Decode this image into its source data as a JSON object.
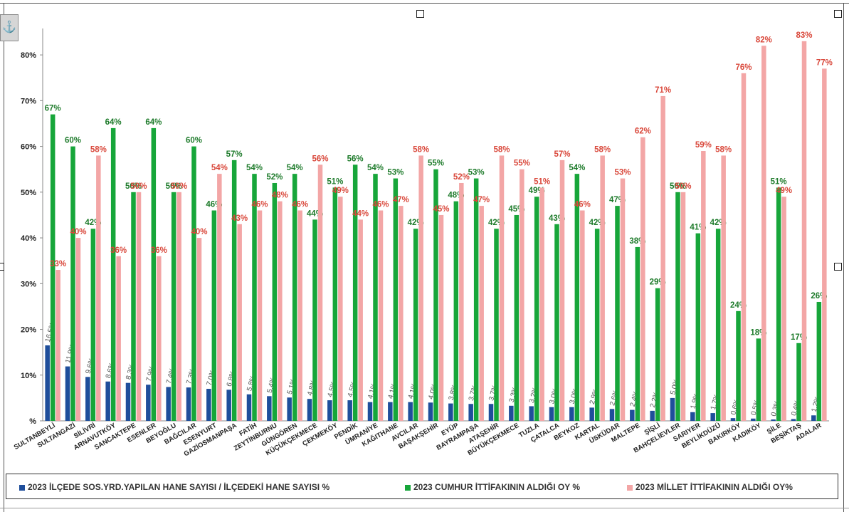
{
  "colors": {
    "series1": "#1f4e9b",
    "series2": "#17a63a",
    "series3": "#f3a6a6",
    "series2_label": "#1e7b2b",
    "series3_label": "#d9473a",
    "series1_label": "#555555",
    "axis_text": "#222222"
  },
  "icons": {
    "anchor": "anchor-icon"
  },
  "chart_data": {
    "type": "bar",
    "title": "",
    "xlabel": "",
    "ylabel": "",
    "ylim": [
      0,
      85
    ],
    "yticks": [
      0,
      10,
      20,
      30,
      40,
      50,
      60,
      70,
      80
    ],
    "ytick_labels": [
      "%",
      "10%",
      "20%",
      "30%",
      "40%",
      "50%",
      "60%",
      "70%",
      "80%"
    ],
    "grid": false,
    "legend_position": "bottom",
    "categories": [
      "SULTANBEYLİ",
      "SULTANGAZİ",
      "SİLİVRİ",
      "ARNAVUTKÖY",
      "SANCAKTEPE",
      "ESENLER",
      "BEYOĞLU",
      "BAĞCILAR",
      "ESENYURT",
      "GAZİOSMANPAŞA",
      "FATİH",
      "ZEYTİNBURNU",
      "GÜNGÖREN",
      "KÜÇÜKÇEKMECE",
      "ÇEKMEKÖY",
      "PENDİK",
      "ÜMRANİYE",
      "KAĞITHANE",
      "AVCILAR",
      "BAŞAKŞEHİR",
      "EYÜP",
      "BAYRAMPAŞA",
      "ATAŞEHİR",
      "BÜYÜKÇEKMECE",
      "TUZLA",
      "ÇATALCA",
      "BEYKOZ",
      "KARTAL",
      "ÜSKÜDAR",
      "MALTEPE",
      "ŞİŞLİ",
      "BAHÇELİEVLER",
      "SARIYER",
      "BEYLİKDÜZÜ",
      "BAKIRKÖY",
      "KADIKÖY",
      "ŞİLE",
      "BEŞİKTAŞ",
      "ADALAR"
    ],
    "series": [
      {
        "name": "2023 İLÇEDE SOS.YRD.YAPILAN HANE SAYISI / İLÇEDEKİ HANE SAYISI %",
        "values": [
          16.5,
          11.9,
          9.6,
          8.6,
          8.3,
          7.9,
          7.4,
          7.3,
          7.0,
          6.8,
          5.8,
          5.4,
          5.1,
          4.8,
          4.5,
          4.5,
          4.1,
          4.1,
          4.1,
          4.0,
          3.8,
          3.7,
          3.7,
          3.3,
          3.2,
          3.0,
          3.0,
          2.9,
          2.6,
          2.4,
          2.2,
          5.0,
          1.9,
          1.7,
          0.6,
          0.5,
          0.3,
          0.4,
          1.2
        ],
        "labels": [
          "16.5%",
          "11.9%",
          "9.6%",
          "8.6%",
          "8.3%",
          "7.9%",
          "7.4%",
          "7.3%",
          "7.0%",
          "6.8%",
          "5.8%",
          "5.4%",
          "5.1%",
          "4.8%",
          "4.5%",
          "4.5%",
          "4.1%",
          "4.1%",
          "4.1%",
          "4.0%",
          "3.8%",
          "3.7%",
          "3.7%",
          "3.3%",
          "3.2%",
          "3.0%",
          "3.0%",
          "2.9%",
          "2.6%",
          "2.4%",
          "2.2%",
          "5.0%",
          "1.9%",
          "1.7%",
          "0.6%",
          "0.5%",
          "0.3%",
          "0.4%",
          "1.2%"
        ]
      },
      {
        "name": "2023 CUMHUR İTTİFAKININ ALDIĞI OY %",
        "values": [
          67,
          60,
          42,
          64,
          50,
          64,
          50,
          60,
          46,
          57,
          54,
          52,
          54,
          44,
          51,
          56,
          54,
          53,
          42,
          55,
          48,
          53,
          42,
          45,
          49,
          43,
          54,
          42,
          47,
          38,
          29,
          50,
          41,
          42,
          24,
          18,
          51,
          17,
          26
        ],
        "labels": [
          "67%",
          "60%",
          "42%",
          "64%",
          "50%",
          "64%",
          "50%",
          "60%",
          "46%",
          "57%",
          "54%",
          "52%",
          "54%",
          "44%",
          "51%",
          "56%",
          "54%",
          "53%",
          "42%",
          "55%",
          "48%",
          "53%",
          "42%",
          "45%",
          "49%",
          "43%",
          "54%",
          "42%",
          "47%",
          "38%",
          "29%",
          "50%",
          "41%",
          "42%",
          "24%",
          "18%",
          "51%",
          "17%",
          "26%"
        ]
      },
      {
        "name": "2023 MİLLET İTTİFAKININ ALDIĞI OY%",
        "values": [
          33,
          40,
          58,
          36,
          50,
          36,
          50,
          40,
          54,
          43,
          46,
          48,
          46,
          56,
          49,
          44,
          46,
          47,
          58,
          45,
          52,
          47,
          58,
          55,
          51,
          57,
          46,
          58,
          53,
          62,
          71,
          50,
          59,
          58,
          76,
          82,
          49,
          83,
          77
        ],
        "labels": [
          "33%",
          "40%",
          "58%",
          "36%",
          "50%",
          "36%",
          "50%",
          "40%",
          "54%",
          "43%",
          "46%",
          "48%",
          "46%",
          "56%",
          "49%",
          "44%",
          "46%",
          "47%",
          "58%",
          "45%",
          "52%",
          "47%",
          "58%",
          "55%",
          "51%",
          "57%",
          "46%",
          "58%",
          "53%",
          "62%",
          "71%",
          "50%",
          "59%",
          "58%",
          "76%",
          "82%",
          "49%",
          "83%",
          "77%"
        ]
      }
    ]
  }
}
